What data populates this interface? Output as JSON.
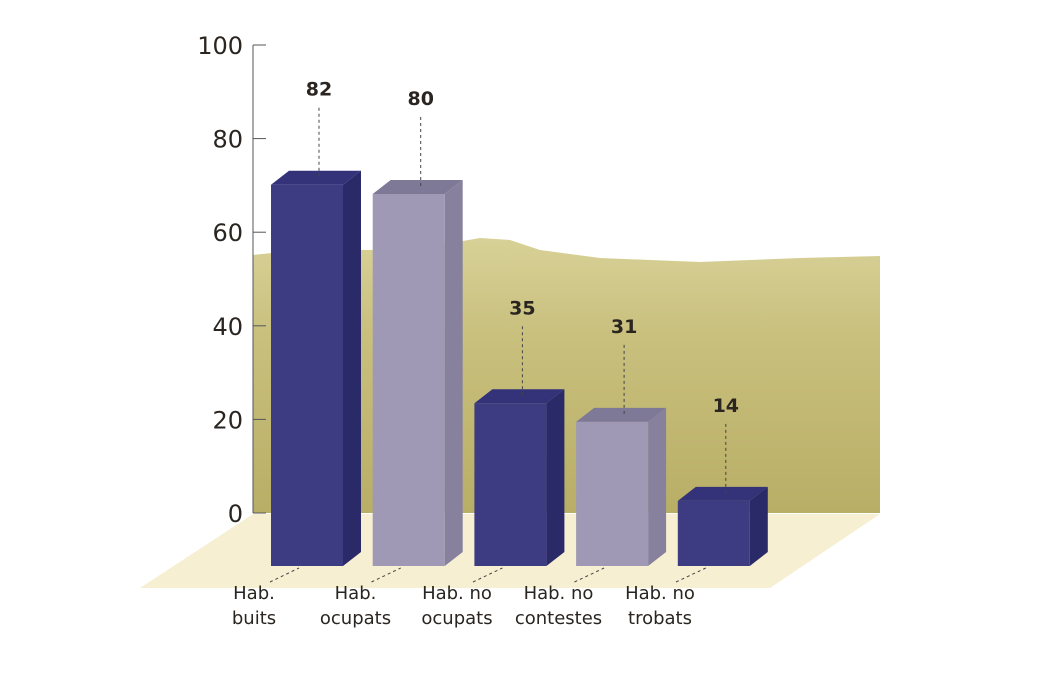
{
  "chart_data": {
    "type": "bar",
    "style": "3d",
    "title": "",
    "xlabel": "",
    "ylabel": "",
    "ylim": [
      0,
      100
    ],
    "yticks": [
      "0",
      "20",
      "40",
      "60",
      "80",
      "100"
    ],
    "grid": false,
    "categories": [
      [
        "Hab.",
        "buits"
      ],
      [
        "Hab.",
        "ocupats"
      ],
      [
        "Hab. no",
        "ocupats"
      ],
      [
        "Hab. no",
        "contestes"
      ],
      [
        "Hab. no",
        "trobats"
      ]
    ],
    "values": [
      82,
      80,
      35,
      31,
      14
    ],
    "data_labels": [
      "82",
      "80",
      "35",
      "31",
      "14"
    ],
    "colors": {
      "dark_bar": "#3d3b82",
      "light_bar": "#9f99b5",
      "floor": "#f6efd2",
      "background_photo": "#c9c07e"
    },
    "bar_color_pattern": [
      "dark_bar",
      "light_bar",
      "dark_bar",
      "light_bar",
      "dark_bar"
    ]
  }
}
